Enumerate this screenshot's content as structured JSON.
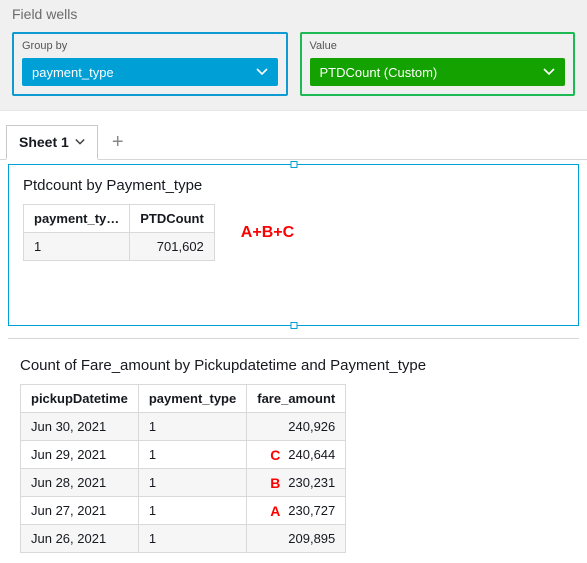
{
  "fieldWells": {
    "title": "Field wells",
    "groupBy": {
      "label": "Group by",
      "value": "payment_type"
    },
    "value": {
      "label": "Value",
      "value": "PTDCount (Custom)"
    }
  },
  "colors": {
    "blueBorder": "#0e9ad3",
    "blueFill": "#009fd6",
    "greenBorder": "#1db954",
    "greenFill": "#13a200",
    "annotation": "#ff0000"
  },
  "tabs": {
    "items": [
      {
        "label": "Sheet 1"
      }
    ]
  },
  "topPanel": {
    "title": "Ptdcount by Payment_type",
    "columns": [
      "payment_ty…",
      "PTDCount"
    ],
    "rows": [
      {
        "payment_type": "1",
        "ptd": "701,602"
      }
    ],
    "formula": "A+B+C"
  },
  "bottomPanel": {
    "title": "Count of Fare_amount by Pickupdatetime and Payment_type",
    "columns": [
      "pickupDatetime",
      "payment_type",
      "fare_amount"
    ],
    "rows": [
      {
        "dt": "Jun 30, 2021",
        "pt": "1",
        "fa": "240,926",
        "letter": ""
      },
      {
        "dt": "Jun 29, 2021",
        "pt": "1",
        "fa": "240,644",
        "letter": "C"
      },
      {
        "dt": "Jun 28, 2021",
        "pt": "1",
        "fa": "230,231",
        "letter": "B"
      },
      {
        "dt": "Jun 27, 2021",
        "pt": "1",
        "fa": "230,727",
        "letter": "A"
      },
      {
        "dt": "Jun 26, 2021",
        "pt": "1",
        "fa": "209,895",
        "letter": ""
      }
    ]
  }
}
